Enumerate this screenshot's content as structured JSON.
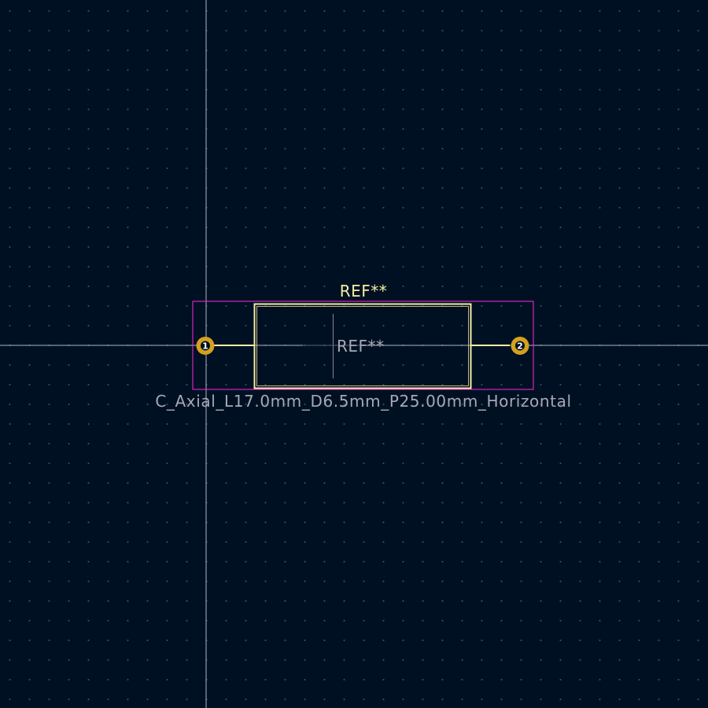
{
  "footprint": {
    "reference_silk": "REF**",
    "reference_fab": "REF**",
    "value": "C_Axial_L17.0mm_D6.5mm_P25.00mm_Horizontal",
    "pads": [
      {
        "number": "1"
      },
      {
        "number": "2"
      }
    ]
  },
  "colors": {
    "background": "#001023",
    "grid_dot": "#3c4a66",
    "crosshair": "#c9d2dc",
    "silkscreen": "#f2eda1",
    "fab_outline": "#d8c88e",
    "fab_text": "#a6a9b4",
    "courtyard": "#ff26e2",
    "pad": "#d4a11f",
    "value_text": "#a6a9b4"
  }
}
